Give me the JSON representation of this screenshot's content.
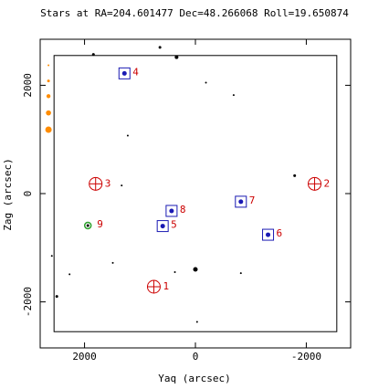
{
  "chart_data": {
    "type": "scatter",
    "title": "Stars at RA=204.601477 Dec=48.266068 Roll=19.650874",
    "xlabel": "Yaq (arcsec)",
    "ylabel": "Zag (arcsec)",
    "xlim": [
      2800,
      -2800
    ],
    "ylim": [
      -2850,
      2850
    ],
    "xticks": [
      2000,
      0,
      -2000
    ],
    "xtick_labels": [
      "2000",
      "0",
      "-2000"
    ],
    "yticks": [
      -2000,
      0,
      2000
    ],
    "ytick_labels": [
      "-2000",
      "0",
      "2000"
    ],
    "grid": false,
    "colors": {
      "axes": "#000000",
      "annotation": "#cc0000",
      "guide": "#1a1ab3",
      "acq": "#1a1ab3",
      "acq_star": "#1a1ab3",
      "fid": "#cc0000",
      "mon": "#2ca02c",
      "legend": "#ff8c00"
    },
    "ccd_box": {
      "y": [
        -2550,
        2550
      ],
      "z": [
        -2550,
        2550
      ]
    },
    "field_stars": [
      {
        "y": 1840,
        "z": 2570,
        "r": 1.5
      },
      {
        "y": 640,
        "z": 2700,
        "r": 1.5
      },
      {
        "y": 340,
        "z": 2520,
        "r": 2.0
      },
      {
        "y": -190,
        "z": 2050,
        "r": 1.0
      },
      {
        "y": -690,
        "z": 1820,
        "r": 1.0
      },
      {
        "y": 1220,
        "z": 1070,
        "r": 1.0
      },
      {
        "y": -1790,
        "z": 330,
        "r": 1.5
      },
      {
        "y": 1330,
        "z": 150,
        "r": 1.0
      },
      {
        "y": 2590,
        "z": -1150,
        "r": 1.0
      },
      {
        "y": 2270,
        "z": -1490,
        "r": 1.0
      },
      {
        "y": 1490,
        "z": -1280,
        "r": 1.0
      },
      {
        "y": 370,
        "z": -1450,
        "r": 1.0
      },
      {
        "y": 0,
        "z": -1400,
        "r": 2.5
      },
      {
        "y": -820,
        "z": -1470,
        "r": 1.0
      },
      {
        "y": -30,
        "z": -2370,
        "r": 1.0
      },
      {
        "y": 2500,
        "z": -1900,
        "r": 1.5
      }
    ],
    "guide_stars": [
      {
        "id": "4",
        "y": 1280,
        "z": 2220
      },
      {
        "id": "5",
        "y": 590,
        "z": -600
      },
      {
        "id": "6",
        "y": -1310,
        "z": -760
      },
      {
        "id": "7",
        "y": -820,
        "z": -150
      },
      {
        "id": "8",
        "y": 430,
        "z": -320
      }
    ],
    "fid_lights": [
      {
        "id": "1",
        "y": 750,
        "z": -1720
      },
      {
        "id": "2",
        "y": -2150,
        "z": 180
      },
      {
        "id": "3",
        "y": 1800,
        "z": 180
      }
    ],
    "monitor_stars": [
      {
        "id": "9",
        "y": 1940,
        "z": -590
      }
    ],
    "magnitude_legend": [
      {
        "y": 2650,
        "z": 2370,
        "r": 1.0
      },
      {
        "y": 2650,
        "z": 2080,
        "r": 1.5
      },
      {
        "y": 2650,
        "z": 1800,
        "r": 2.2
      },
      {
        "y": 2650,
        "z": 1490,
        "r": 2.8
      },
      {
        "y": 2650,
        "z": 1180,
        "r": 3.5
      }
    ]
  }
}
